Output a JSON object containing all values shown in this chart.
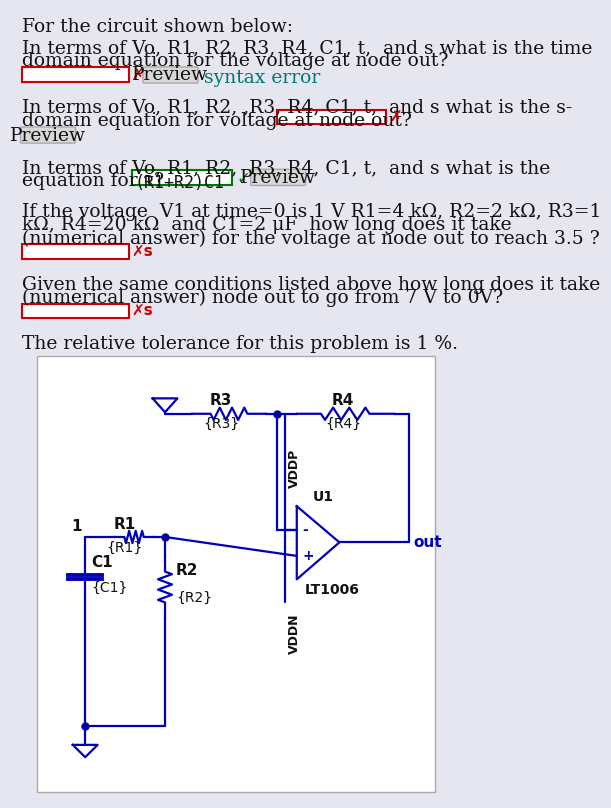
{
  "bg_color": "#e6e6f0",
  "circuit_bg": "#ffffff",
  "blue": "#0000bb",
  "text_color": "#111111",
  "red": "#cc0000",
  "green": "#007700",
  "teal": "#007777",
  "gray_btn": "#d8d8d8",
  "gray_border": "#aaaaaa",
  "title": "For the circuit shown below:",
  "q1_line1": "In terms of Vo, R1, R2, R3, R4, C1, t,  and s what is the time",
  "q1_line2": "domain equation for the voltage at node out?",
  "q2_line1": "In terms of Vo, R1, R2, ,R3, R4, C1, t,  and s what is the s-",
  "q2_line2": "domain equation for voltage at node out?",
  "q3_line1": "In terms of Vo, R1, R2,  R3, R4, C1, t,  and s what is the",
  "q3_line2": "equation for τ?",
  "q3_answer": "(R1+R2)C1",
  "q4_line1": "If the voltage  V1 at time=0 is 1 V R1=4 kΩ, R2=2 kΩ, R3=1",
  "q4_line2": "kΩ, R4=20 kΩ  and C1=2 μF  how long does it take",
  "q4_line3": "(numerical answer) for the voltage at node out to reach 3.5 ?",
  "q5_line1": "Given the same conditions listed above how long does it take",
  "q5_line2": "(numerical answer) node out to go from 7 V to 0V?",
  "tolerance": "The relative tolerance for this problem is 1 %.",
  "font_size": 13.5,
  "small_font": 10
}
